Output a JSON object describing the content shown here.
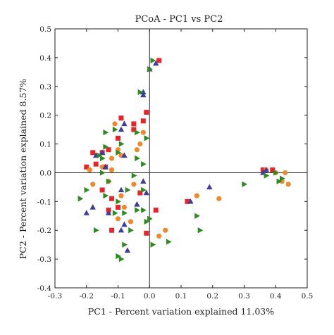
{
  "chart_data": {
    "type": "scatter",
    "title": "PCoA - PC1 vs PC2",
    "xlabel": "PC1 - Percent variation explained 11.03%",
    "ylabel": "PC2 - Percent variation explained 8.57%",
    "xlim": [
      -0.3,
      0.5
    ],
    "ylim": [
      -0.4,
      0.5
    ],
    "xticks": [
      "-0.3",
      "-0.2",
      "-0.1",
      "0.0",
      "0.1",
      "0.2",
      "0.3",
      "0.4",
      "0.5"
    ],
    "yticks": [
      "0.5",
      "0.4",
      "0.3",
      "0.2",
      "0.1",
      "0.0",
      "-0.1",
      "-0.2",
      "-0.3",
      "-0.4"
    ],
    "grid": false,
    "series": [
      {
        "marker": "square",
        "color": "#e8242b",
        "points": [
          [
            0.03,
            0.39
          ],
          [
            -0.01,
            0.21
          ],
          [
            -0.02,
            0.18
          ],
          [
            -0.05,
            0.17
          ],
          [
            -0.09,
            0.19
          ],
          [
            -0.05,
            0.15
          ],
          [
            -0.1,
            0.12
          ],
          [
            -0.18,
            0.07
          ],
          [
            -0.2,
            0.02
          ],
          [
            -0.17,
            0.03
          ],
          [
            -0.15,
            0.07
          ],
          [
            -0.13,
            0.08
          ],
          [
            -0.14,
            0.02
          ],
          [
            -0.15,
            -0.06
          ],
          [
            -0.12,
            -0.09
          ],
          [
            -0.03,
            -0.07
          ],
          [
            -0.1,
            -0.12
          ],
          [
            -0.13,
            -0.13
          ],
          [
            -0.12,
            -0.2
          ],
          [
            -0.01,
            -0.21
          ],
          [
            0.12,
            -0.1
          ],
          [
            0.02,
            -0.13
          ],
          [
            0.36,
            0.01
          ],
          [
            0.39,
            0.01
          ]
        ]
      },
      {
        "marker": "circle",
        "color": "#f0892c",
        "points": [
          [
            -0.11,
            0.17
          ],
          [
            -0.02,
            0.14
          ],
          [
            -0.03,
            0.1
          ],
          [
            -0.1,
            0.08
          ],
          [
            -0.09,
            0.06
          ],
          [
            -0.04,
            0.08
          ],
          [
            -0.12,
            0.01
          ],
          [
            -0.15,
            0.02
          ],
          [
            -0.12,
            0.01
          ],
          [
            -0.19,
            0.01
          ],
          [
            -0.18,
            -0.04
          ],
          [
            -0.13,
            -0.03
          ],
          [
            -0.12,
            0.05
          ],
          [
            -0.08,
            -0.12
          ],
          [
            -0.1,
            -0.16
          ],
          [
            -0.06,
            -0.17
          ],
          [
            -0.05,
            -0.04
          ],
          [
            -0.09,
            -0.08
          ],
          [
            0.03,
            -0.22
          ],
          [
            0.05,
            -0.2
          ],
          [
            0.22,
            -0.09
          ],
          [
            0.15,
            -0.08
          ],
          [
            0.4,
            0.0
          ],
          [
            0.44,
            -0.04
          ],
          [
            0.43,
            0.0
          ],
          [
            0.42,
            -0.03
          ],
          [
            0.37,
            0.01
          ]
        ]
      },
      {
        "marker": "triangle-up",
        "color": "#3e3d9b",
        "points": [
          [
            0.02,
            0.38
          ],
          [
            0.0,
            0.36
          ],
          [
            -0.02,
            0.28
          ],
          [
            -0.02,
            0.27
          ],
          [
            -0.08,
            0.17
          ],
          [
            -0.09,
            0.15
          ],
          [
            -0.15,
            0.07
          ],
          [
            -0.17,
            0.06
          ],
          [
            -0.08,
            0.06
          ],
          [
            -0.14,
            0.02
          ],
          [
            -0.02,
            -0.03
          ],
          [
            -0.09,
            -0.06
          ],
          [
            -0.13,
            -0.14
          ],
          [
            -0.18,
            -0.12
          ],
          [
            -0.04,
            -0.11
          ],
          [
            -0.2,
            -0.14
          ],
          [
            -0.09,
            -0.2
          ],
          [
            -0.08,
            -0.18
          ],
          [
            -0.07,
            -0.27
          ],
          [
            -0.01,
            -0.07
          ],
          [
            0.13,
            -0.1
          ],
          [
            0.19,
            -0.05
          ],
          [
            0.37,
            0.01
          ],
          [
            0.36,
            0.0
          ]
        ]
      },
      {
        "marker": "triangle-right",
        "color": "#2e8b22",
        "points": [
          [
            0.01,
            0.39
          ],
          [
            0.0,
            0.36
          ],
          [
            -0.03,
            0.28
          ],
          [
            -0.11,
            0.15
          ],
          [
            -0.04,
            0.14
          ],
          [
            -0.01,
            0.12
          ],
          [
            -0.14,
            0.14
          ],
          [
            -0.14,
            0.09
          ],
          [
            -0.09,
            0.1
          ],
          [
            -0.15,
            0.05
          ],
          [
            -0.04,
            0.05
          ],
          [
            -0.1,
            0.07
          ],
          [
            -0.16,
            0.06
          ],
          [
            -0.02,
            0.03
          ],
          [
            -0.15,
            0.0
          ],
          [
            -0.05,
            -0.01
          ],
          [
            -0.13,
            -0.03
          ],
          [
            -0.2,
            -0.06
          ],
          [
            -0.22,
            -0.09
          ],
          [
            -0.14,
            -0.08
          ],
          [
            -0.07,
            -0.06
          ],
          [
            -0.02,
            -0.06
          ],
          [
            -0.1,
            -0.1
          ],
          [
            -0.08,
            -0.14
          ],
          [
            -0.04,
            -0.13
          ],
          [
            -0.11,
            -0.14
          ],
          [
            -0.01,
            -0.17
          ],
          [
            -0.02,
            -0.13
          ],
          [
            -0.17,
            -0.2
          ],
          [
            -0.06,
            -0.2
          ],
          [
            -0.08,
            -0.25
          ],
          [
            -0.09,
            -0.3
          ],
          [
            -0.1,
            -0.29
          ],
          [
            0.01,
            -0.25
          ],
          [
            0.0,
            -0.16
          ],
          [
            0.06,
            -0.24
          ],
          [
            0.15,
            -0.15
          ],
          [
            0.16,
            -0.2
          ],
          [
            0.3,
            -0.04
          ],
          [
            0.37,
            -0.01
          ],
          [
            0.4,
            0.0
          ],
          [
            0.41,
            -0.03
          ],
          [
            0.42,
            -0.02
          ]
        ]
      }
    ]
  }
}
